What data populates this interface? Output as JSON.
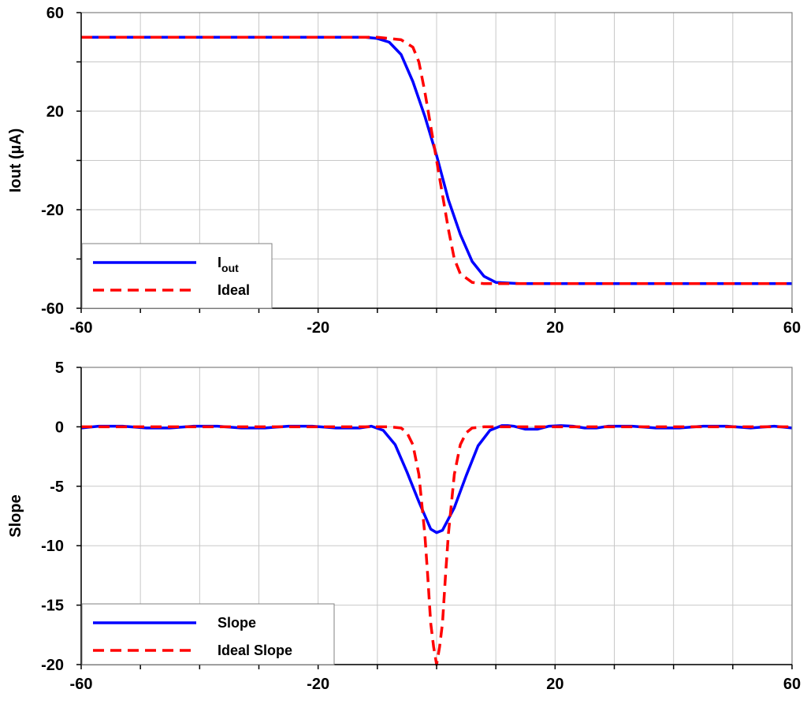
{
  "chart_data": [
    {
      "type": "line",
      "ylabel": "Iout (µA)",
      "xlim": [
        -60,
        60
      ],
      "ylim": [
        -60,
        60
      ],
      "x_ticks": [
        -60,
        -20,
        20,
        60
      ],
      "y_ticks": [
        -60,
        -20,
        20,
        60
      ],
      "x_grid_step": 10,
      "y_grid_step": 20,
      "grid": true,
      "legend_placement": "bottom-left",
      "series": [
        {
          "name": "Iout",
          "legend_main": "I",
          "legend_sub": "out",
          "color": "#0000ff",
          "dash": "solid",
          "x": [
            -60,
            -12,
            -10,
            -8,
            -6,
            -4,
            -2,
            0,
            2,
            4,
            6,
            8,
            10,
            14,
            60
          ],
          "y": [
            50,
            50,
            49.5,
            48,
            43,
            32,
            18,
            2,
            -16,
            -30,
            -41,
            -47,
            -49.5,
            -50,
            -50
          ]
        },
        {
          "name": "Ideal",
          "color": "#ff0000",
          "dash": "dashed",
          "x": [
            -60,
            -10,
            -6,
            -4,
            -3,
            -2,
            -1,
            0,
            1,
            2,
            3,
            4,
            6,
            8,
            60
          ],
          "y": [
            50,
            50,
            49,
            46,
            40,
            28,
            14,
            0,
            -14,
            -28,
            -40,
            -46,
            -49.5,
            -50,
            -50
          ]
        }
      ]
    },
    {
      "type": "line",
      "ylabel": "Slope",
      "xlim": [
        -60,
        60
      ],
      "ylim": [
        -20,
        5
      ],
      "x_ticks": [
        -60,
        -20,
        20,
        60
      ],
      "y_ticks": [
        -20,
        -15,
        -10,
        -5,
        0,
        5
      ],
      "x_grid_step": 10,
      "y_grid_step": 5,
      "grid": true,
      "legend_placement": "bottom-left",
      "series": [
        {
          "name": "Slope",
          "color": "#0000ff",
          "dash": "solid",
          "x": [
            -60,
            -57,
            -53,
            -49,
            -45,
            -41,
            -37,
            -33,
            -29,
            -25,
            -21,
            -17,
            -13,
            -11,
            -9,
            -7,
            -5,
            -3,
            -1,
            0,
            1,
            3,
            5,
            7,
            9,
            11,
            12,
            13,
            15,
            17,
            19,
            21,
            23,
            25,
            27,
            29,
            33,
            37,
            41,
            45,
            49,
            53,
            57,
            60
          ],
          "y": [
            -0.1,
            0.05,
            0.05,
            -0.1,
            -0.1,
            0.05,
            0.05,
            -0.1,
            -0.1,
            0.05,
            0.05,
            -0.1,
            -0.1,
            0.05,
            -0.3,
            -1.5,
            -3.8,
            -6.3,
            -8.6,
            -8.9,
            -8.7,
            -6.8,
            -4.1,
            -1.6,
            -0.3,
            0.1,
            0.1,
            0.05,
            -0.2,
            -0.2,
            0.05,
            0.1,
            0.05,
            -0.1,
            -0.1,
            0.05,
            0.05,
            -0.1,
            -0.1,
            0.05,
            0.05,
            -0.1,
            0.05,
            -0.1
          ]
        },
        {
          "name": "Ideal Slope",
          "color": "#ff0000",
          "dash": "dashed",
          "x": [
            -60,
            -8,
            -6,
            -5,
            -4,
            -3,
            -2,
            -1.5,
            -1,
            -0.5,
            0,
            0.5,
            1,
            1.5,
            2,
            3,
            4,
            5,
            6,
            8,
            60
          ],
          "y": [
            0,
            0,
            -0.1,
            -0.5,
            -1.5,
            -4,
            -9,
            -12.5,
            -16.5,
            -18.5,
            -20,
            -18.5,
            -16.5,
            -12.5,
            -9,
            -4,
            -1.5,
            -0.5,
            -0.1,
            0,
            0
          ]
        }
      ]
    }
  ]
}
